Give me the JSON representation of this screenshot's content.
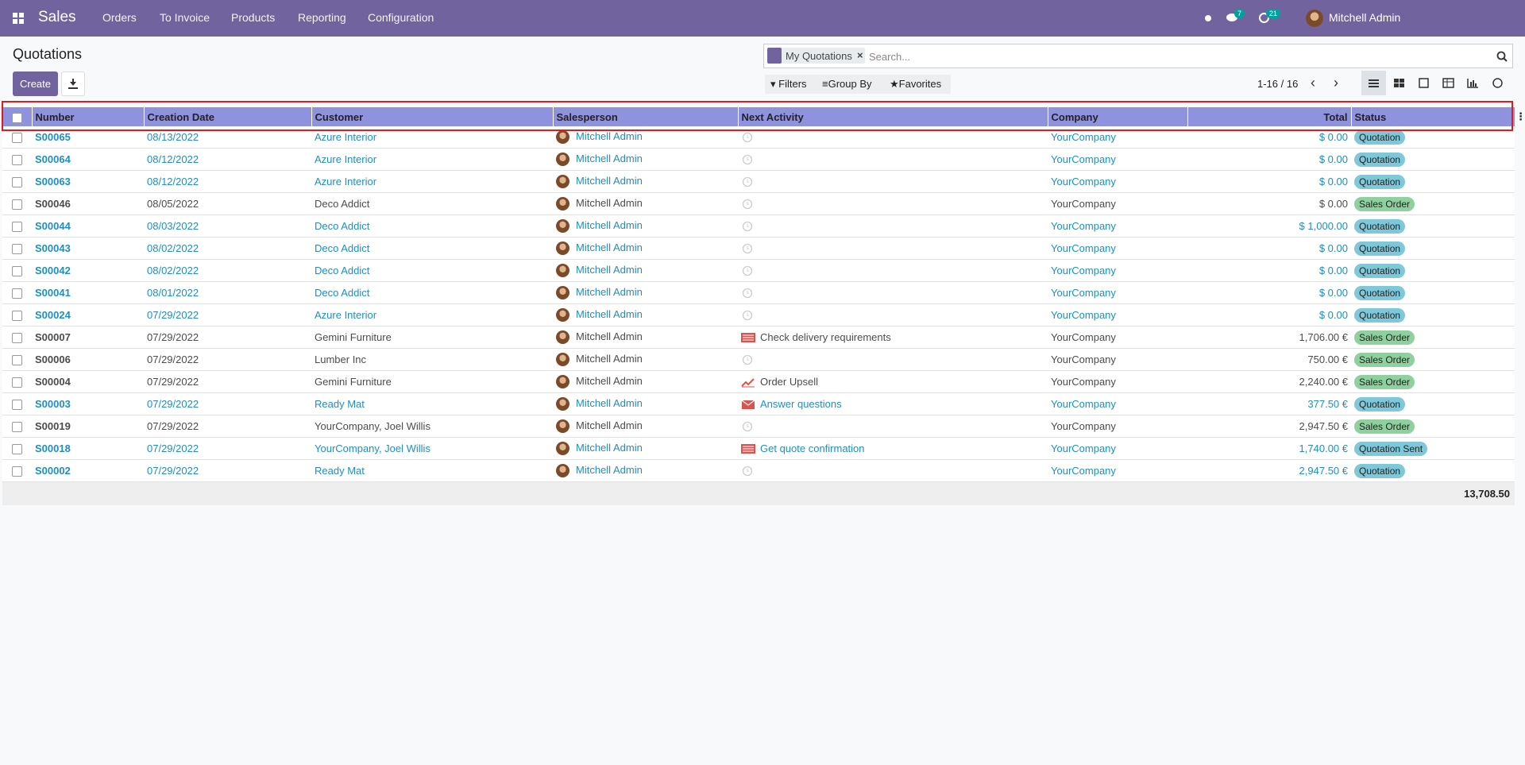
{
  "navbar": {
    "brand": "Sales",
    "menu": [
      "Orders",
      "To Invoice",
      "Products",
      "Reporting",
      "Configuration"
    ],
    "messages": 7,
    "activities": 21,
    "user": "Mitchell Admin"
  },
  "control_panel": {
    "title": "Quotations",
    "create": "Create",
    "facet": "My Quotations",
    "search_placeholder": "Search...",
    "filters": "Filters",
    "group_by": "Group By",
    "favorites": "Favorites",
    "pager": "1-16 / 16"
  },
  "table": {
    "headers": [
      "Number",
      "Creation Date",
      "Customer",
      "Salesperson",
      "Next Activity",
      "Company",
      "Total",
      "Status"
    ],
    "rows": [
      {
        "number": "S00065",
        "date": "08/13/2022",
        "customer": "Azure Interior",
        "salesperson": "Mitchell Admin",
        "activity": null,
        "activity_icon": "clock",
        "company": "YourCompany",
        "total": "$ 0.00",
        "status": "Quotation",
        "badge": "info",
        "info": true
      },
      {
        "number": "S00064",
        "date": "08/12/2022",
        "customer": "Azure Interior",
        "salesperson": "Mitchell Admin",
        "activity": null,
        "activity_icon": "clock",
        "company": "YourCompany",
        "total": "$ 0.00",
        "status": "Quotation",
        "badge": "info",
        "info": true
      },
      {
        "number": "S00063",
        "date": "08/12/2022",
        "customer": "Azure Interior",
        "salesperson": "Mitchell Admin",
        "activity": null,
        "activity_icon": "clock",
        "company": "YourCompany",
        "total": "$ 0.00",
        "status": "Quotation",
        "badge": "info",
        "info": true
      },
      {
        "number": "S00046",
        "date": "08/05/2022",
        "customer": "Deco Addict",
        "salesperson": "Mitchell Admin",
        "activity": null,
        "activity_icon": "clock",
        "company": "YourCompany",
        "total": "$ 0.00",
        "status": "Sales Order",
        "badge": "success",
        "info": false
      },
      {
        "number": "S00044",
        "date": "08/03/2022",
        "customer": "Deco Addict",
        "salesperson": "Mitchell Admin",
        "activity": null,
        "activity_icon": "clock",
        "company": "YourCompany",
        "total": "$ 1,000.00",
        "status": "Quotation",
        "badge": "info",
        "info": true
      },
      {
        "number": "S00043",
        "date": "08/02/2022",
        "customer": "Deco Addict",
        "salesperson": "Mitchell Admin",
        "activity": null,
        "activity_icon": "clock",
        "company": "YourCompany",
        "total": "$ 0.00",
        "status": "Quotation",
        "badge": "info",
        "info": true
      },
      {
        "number": "S00042",
        "date": "08/02/2022",
        "customer": "Deco Addict",
        "salesperson": "Mitchell Admin",
        "activity": null,
        "activity_icon": "clock",
        "company": "YourCompany",
        "total": "$ 0.00",
        "status": "Quotation",
        "badge": "info",
        "info": true
      },
      {
        "number": "S00041",
        "date": "08/01/2022",
        "customer": "Deco Addict",
        "salesperson": "Mitchell Admin",
        "activity": null,
        "activity_icon": "clock",
        "company": "YourCompany",
        "total": "$ 0.00",
        "status": "Quotation",
        "badge": "info",
        "info": true
      },
      {
        "number": "S00024",
        "date": "07/29/2022",
        "customer": "Azure Interior",
        "salesperson": "Mitchell Admin",
        "activity": null,
        "activity_icon": "clock",
        "company": "YourCompany",
        "total": "$ 0.00",
        "status": "Quotation",
        "badge": "info",
        "info": true
      },
      {
        "number": "S00007",
        "date": "07/29/2022",
        "customer": "Gemini Furniture",
        "salesperson": "Mitchell Admin",
        "activity": "Check delivery requirements",
        "activity_icon": "todo",
        "company": "YourCompany",
        "total": "1,706.00 €",
        "status": "Sales Order",
        "badge": "success",
        "info": false
      },
      {
        "number": "S00006",
        "date": "07/29/2022",
        "customer": "Lumber Inc",
        "salesperson": "Mitchell Admin",
        "activity": null,
        "activity_icon": "clock",
        "company": "YourCompany",
        "total": "750.00 €",
        "status": "Sales Order",
        "badge": "success",
        "info": false
      },
      {
        "number": "S00004",
        "date": "07/29/2022",
        "customer": "Gemini Furniture",
        "salesperson": "Mitchell Admin",
        "activity": "Order Upsell",
        "activity_icon": "upsell",
        "company": "YourCompany",
        "total": "2,240.00 €",
        "status": "Sales Order",
        "badge": "success",
        "info": false
      },
      {
        "number": "S00003",
        "date": "07/29/2022",
        "customer": "Ready Mat",
        "salesperson": "Mitchell Admin",
        "activity": "Answer questions",
        "activity_icon": "email",
        "company": "YourCompany",
        "total": "377.50 €",
        "status": "Quotation",
        "badge": "info",
        "info": true
      },
      {
        "number": "S00019",
        "date": "07/29/2022",
        "customer": "YourCompany, Joel Willis",
        "salesperson": "Mitchell Admin",
        "activity": null,
        "activity_icon": "clock",
        "company": "YourCompany",
        "total": "2,947.50 €",
        "status": "Sales Order",
        "badge": "success",
        "info": false
      },
      {
        "number": "S00018",
        "date": "07/29/2022",
        "customer": "YourCompany, Joel Willis",
        "salesperson": "Mitchell Admin",
        "activity": "Get quote confirmation",
        "activity_icon": "todo",
        "company": "YourCompany",
        "total": "1,740.00 €",
        "status": "Quotation Sent",
        "badge": "info",
        "info": true
      },
      {
        "number": "S00002",
        "date": "07/29/2022",
        "customer": "Ready Mat",
        "salesperson": "Mitchell Admin",
        "activity": null,
        "activity_icon": "clock",
        "company": "YourCompany",
        "total": "2,947.50 €",
        "status": "Quotation",
        "badge": "info",
        "info": true
      }
    ],
    "footer_total": "13,708.50"
  }
}
